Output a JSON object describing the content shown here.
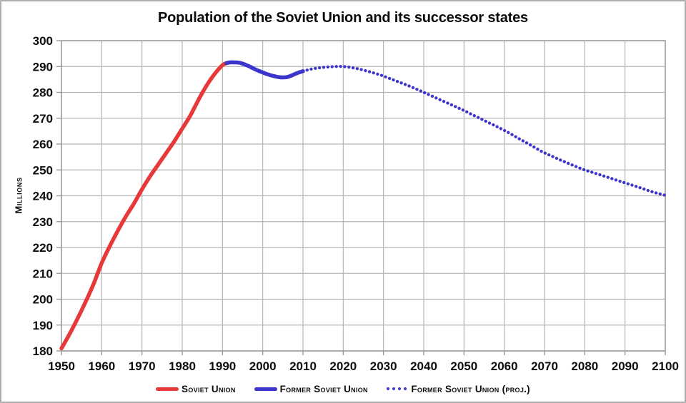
{
  "chart_data": {
    "type": "line",
    "title": "Population of the Soviet Union and its successor states",
    "xlabel": "",
    "ylabel": "Millions",
    "xlim": [
      1950,
      2100
    ],
    "ylim": [
      180,
      300
    ],
    "x_ticks": [
      1950,
      1960,
      1970,
      1980,
      1990,
      2000,
      2010,
      2020,
      2030,
      2040,
      2050,
      2060,
      2070,
      2080,
      2090,
      2100
    ],
    "y_ticks": [
      180,
      190,
      200,
      210,
      220,
      230,
      240,
      250,
      260,
      270,
      280,
      290,
      300
    ],
    "grid": true,
    "legend_position": "bottom",
    "grid_color": "#b5b5b5",
    "axis_color": "#9a9a9a",
    "text_color": "#0d0d0d",
    "series": [
      {
        "name": "Soviet Union",
        "style": "solid",
        "color": "#e8393a",
        "points": [
          [
            1950,
            181
          ],
          [
            1952,
            186.5
          ],
          [
            1954,
            192.5
          ],
          [
            1956,
            199
          ],
          [
            1958,
            206
          ],
          [
            1960,
            214
          ],
          [
            1962,
            220.5
          ],
          [
            1964,
            226.5
          ],
          [
            1966,
            232
          ],
          [
            1968,
            237
          ],
          [
            1970,
            242.5
          ],
          [
            1972,
            247.5
          ],
          [
            1974,
            252
          ],
          [
            1976,
            256.5
          ],
          [
            1978,
            261
          ],
          [
            1980,
            266
          ],
          [
            1982,
            271
          ],
          [
            1984,
            277
          ],
          [
            1986,
            282.5
          ],
          [
            1988,
            287
          ],
          [
            1990,
            290.5
          ],
          [
            1991,
            291.3
          ]
        ]
      },
      {
        "name": "Former Soviet Union",
        "style": "solid",
        "color": "#3b35cb",
        "points": [
          [
            1991,
            291.3
          ],
          [
            1992,
            291.6
          ],
          [
            1994,
            291.5
          ],
          [
            1995,
            291.1
          ],
          [
            1996,
            290.5
          ],
          [
            1997,
            289.8
          ],
          [
            1998,
            289
          ],
          [
            1999,
            288.3
          ],
          [
            2000,
            287.7
          ],
          [
            2001,
            287.1
          ],
          [
            2002,
            286.6
          ],
          [
            2003,
            286.2
          ],
          [
            2004,
            285.9
          ],
          [
            2005,
            285.8
          ],
          [
            2006,
            285.9
          ],
          [
            2007,
            286.4
          ],
          [
            2008,
            287.1
          ],
          [
            2009,
            287.7
          ],
          [
            2010,
            288.2
          ]
        ]
      },
      {
        "name": "Former Soviet Union (proj.)",
        "style": "dotted",
        "color": "#3b35cb",
        "points": [
          [
            2010,
            288.2
          ],
          [
            2011,
            288.6
          ],
          [
            2012,
            289
          ],
          [
            2014,
            289.5
          ],
          [
            2016,
            289.8
          ],
          [
            2018,
            290
          ],
          [
            2020,
            290
          ],
          [
            2022,
            289.6
          ],
          [
            2024,
            289
          ],
          [
            2026,
            288.2
          ],
          [
            2028,
            287.3
          ],
          [
            2030,
            286.3
          ],
          [
            2032,
            285.1
          ],
          [
            2034,
            283.9
          ],
          [
            2036,
            282.7
          ],
          [
            2038,
            281.4
          ],
          [
            2040,
            280
          ],
          [
            2042,
            278.6
          ],
          [
            2044,
            277.2
          ],
          [
            2046,
            275.8
          ],
          [
            2048,
            274.4
          ],
          [
            2050,
            273
          ],
          [
            2052,
            271.4
          ],
          [
            2054,
            269.9
          ],
          [
            2056,
            268.4
          ],
          [
            2058,
            266.9
          ],
          [
            2060,
            265.3
          ],
          [
            2062,
            263.6
          ],
          [
            2064,
            261.8
          ],
          [
            2066,
            260.1
          ],
          [
            2068,
            258.3
          ],
          [
            2070,
            256.6
          ],
          [
            2072,
            255.2
          ],
          [
            2074,
            253.8
          ],
          [
            2076,
            252.5
          ],
          [
            2078,
            251.2
          ],
          [
            2080,
            250
          ],
          [
            2082,
            249
          ],
          [
            2084,
            248
          ],
          [
            2086,
            247
          ],
          [
            2088,
            246
          ],
          [
            2090,
            245
          ],
          [
            2092,
            244
          ],
          [
            2094,
            243
          ],
          [
            2096,
            241.9
          ],
          [
            2098,
            241
          ],
          [
            2100,
            240.2
          ]
        ]
      }
    ]
  }
}
